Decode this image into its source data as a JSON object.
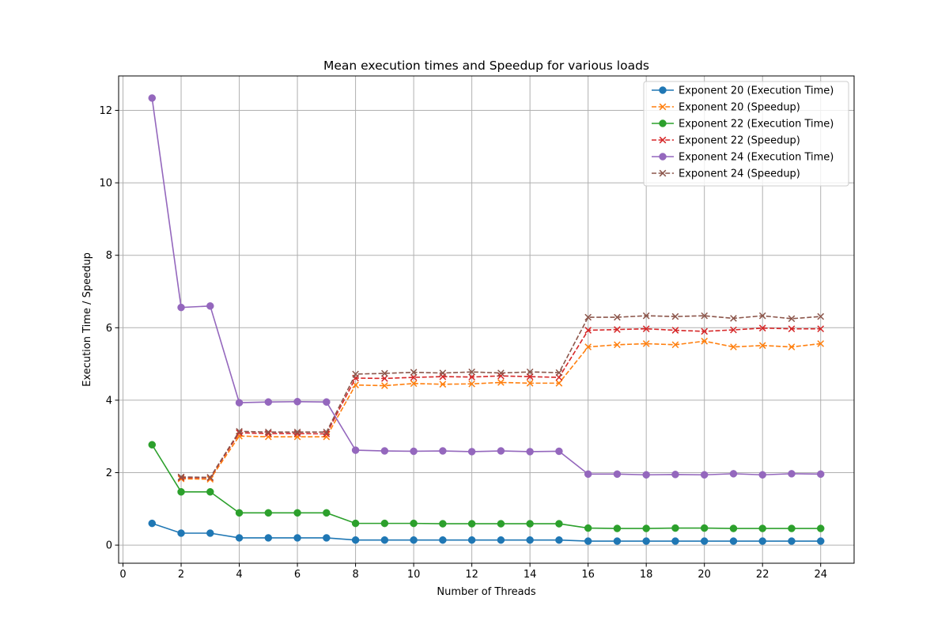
{
  "chart_data": {
    "type": "line",
    "title": "Mean execution times and Speedup for various loads",
    "xlabel": "Number of Threads",
    "ylabel": "Execution Time / Speedup",
    "xlim": [
      -0.15,
      25.15
    ],
    "ylim": [
      -0.5,
      12.95
    ],
    "xticks": [
      0,
      2,
      4,
      6,
      8,
      10,
      12,
      14,
      16,
      18,
      20,
      22,
      24
    ],
    "yticks": [
      0,
      2,
      4,
      6,
      8,
      10,
      12
    ],
    "grid": true,
    "legend_position": "top-right",
    "series": [
      {
        "name": "Exponent 20 (Execution Time)",
        "color": "#1f77b4",
        "style": "solid",
        "marker": "circle",
        "x": [
          1,
          2,
          3,
          4,
          5,
          6,
          7,
          8,
          9,
          10,
          11,
          12,
          13,
          14,
          15,
          16,
          17,
          18,
          19,
          20,
          21,
          22,
          23,
          24
        ],
        "y": [
          0.6,
          0.33,
          0.33,
          0.2,
          0.2,
          0.2,
          0.2,
          0.14,
          0.14,
          0.14,
          0.14,
          0.14,
          0.14,
          0.14,
          0.14,
          0.11,
          0.11,
          0.11,
          0.11,
          0.11,
          0.11,
          0.11,
          0.11,
          0.11
        ]
      },
      {
        "name": "Exponent 20 (Speedup)",
        "color": "#ff7f0e",
        "style": "dashed",
        "marker": "x",
        "x": [
          2,
          3,
          4,
          5,
          6,
          7,
          8,
          9,
          10,
          11,
          12,
          13,
          14,
          15,
          16,
          17,
          18,
          19,
          20,
          21,
          22,
          23,
          24
        ],
        "y": [
          1.83,
          1.82,
          3.01,
          2.99,
          2.99,
          2.99,
          4.42,
          4.4,
          4.46,
          4.44,
          4.45,
          4.49,
          4.47,
          4.47,
          5.47,
          5.53,
          5.56,
          5.53,
          5.63,
          5.47,
          5.51,
          5.47,
          5.56
        ]
      },
      {
        "name": "Exponent 22 (Execution Time)",
        "color": "#2ca02c",
        "style": "solid",
        "marker": "circle",
        "x": [
          1,
          2,
          3,
          4,
          5,
          6,
          7,
          8,
          9,
          10,
          11,
          12,
          13,
          14,
          15,
          16,
          17,
          18,
          19,
          20,
          21,
          22,
          23,
          24
        ],
        "y": [
          2.77,
          1.47,
          1.47,
          0.89,
          0.89,
          0.89,
          0.89,
          0.6,
          0.6,
          0.6,
          0.59,
          0.59,
          0.59,
          0.59,
          0.59,
          0.47,
          0.46,
          0.46,
          0.47,
          0.47,
          0.46,
          0.46,
          0.46,
          0.46
        ]
      },
      {
        "name": "Exponent 22 (Speedup)",
        "color": "#d62728",
        "style": "dashed",
        "marker": "x",
        "x": [
          2,
          3,
          4,
          5,
          6,
          7,
          8,
          9,
          10,
          11,
          12,
          13,
          14,
          15,
          16,
          17,
          18,
          19,
          20,
          21,
          22,
          23,
          24
        ],
        "y": [
          1.86,
          1.86,
          3.1,
          3.08,
          3.08,
          3.07,
          4.61,
          4.6,
          4.63,
          4.65,
          4.64,
          4.67,
          4.65,
          4.63,
          5.93,
          5.95,
          5.97,
          5.93,
          5.9,
          5.94,
          5.99,
          5.97,
          5.97
        ]
      },
      {
        "name": "Exponent 24 (Execution Time)",
        "color": "#9467bd",
        "style": "solid",
        "marker": "circle",
        "x": [
          1,
          2,
          3,
          4,
          5,
          6,
          7,
          8,
          9,
          10,
          11,
          12,
          13,
          14,
          15,
          16,
          17,
          18,
          19,
          20,
          21,
          22,
          23,
          24
        ],
        "y": [
          12.34,
          6.56,
          6.6,
          3.93,
          3.95,
          3.96,
          3.95,
          2.62,
          2.6,
          2.59,
          2.6,
          2.58,
          2.6,
          2.58,
          2.59,
          1.96,
          1.96,
          1.94,
          1.95,
          1.94,
          1.97,
          1.94,
          1.97,
          1.96
        ]
      },
      {
        "name": "Exponent 24 (Speedup)",
        "color": "#8c564b",
        "style": "dashed",
        "marker": "x",
        "x": [
          2,
          3,
          4,
          5,
          6,
          7,
          8,
          9,
          10,
          11,
          12,
          13,
          14,
          15,
          16,
          17,
          18,
          19,
          20,
          21,
          22,
          23,
          24
        ],
        "y": [
          1.88,
          1.87,
          3.14,
          3.12,
          3.12,
          3.12,
          4.72,
          4.74,
          4.77,
          4.75,
          4.78,
          4.75,
          4.78,
          4.76,
          6.29,
          6.29,
          6.33,
          6.31,
          6.33,
          6.26,
          6.33,
          6.25,
          6.31
        ]
      }
    ]
  }
}
